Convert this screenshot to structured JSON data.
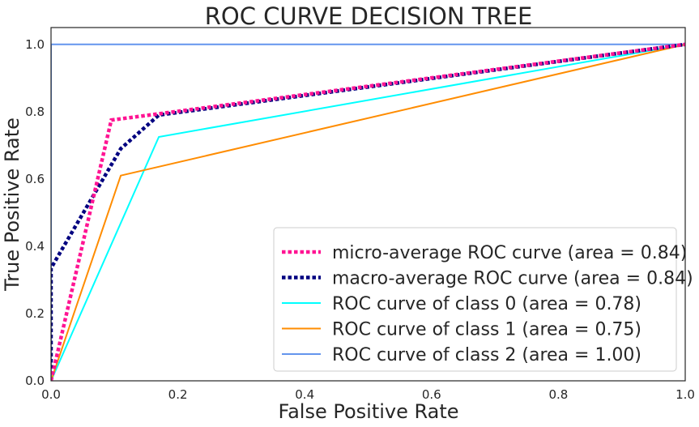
{
  "chart_data": {
    "type": "line",
    "title": "ROC CURVE DECISION TREE",
    "xlabel": "False Positive Rate",
    "ylabel": "True Positive Rate",
    "xlim": [
      0.0,
      1.0
    ],
    "ylim": [
      0.0,
      1.05
    ],
    "xticks": [
      "0.0",
      "0.2",
      "0.4",
      "0.6",
      "0.8",
      "1.0"
    ],
    "yticks": [
      "0.0",
      "0.2",
      "0.4",
      "0.6",
      "0.8",
      "1.0"
    ],
    "grid": false,
    "legend_position": "lower-right",
    "series": [
      {
        "name": "micro-average ROC curve (area = 0.84)",
        "color": "#ff1493",
        "style": "dotted",
        "x": [
          0.0,
          0.095,
          1.0
        ],
        "y": [
          0.0,
          0.775,
          1.0
        ]
      },
      {
        "name": "macro-average ROC curve (area = 0.84)",
        "color": "#000080",
        "style": "dotted",
        "x": [
          0.0,
          0.0,
          0.11,
          0.17,
          1.0
        ],
        "y": [
          0.0,
          0.335,
          0.69,
          0.79,
          1.0
        ]
      },
      {
        "name": "ROC curve of class 0 (area = 0.78)",
        "color": "#00ffff",
        "style": "solid",
        "x": [
          0.0,
          0.17,
          1.0
        ],
        "y": [
          0.0,
          0.725,
          1.0
        ]
      },
      {
        "name": "ROC curve of class 1 (area = 0.75)",
        "color": "#ff8c00",
        "style": "solid",
        "x": [
          0.0,
          0.11,
          1.0
        ],
        "y": [
          0.0,
          0.61,
          1.0
        ]
      },
      {
        "name": "ROC curve of class 2 (area = 1.00)",
        "color": "#6495ed",
        "style": "solid",
        "x": [
          0.0,
          0.0,
          1.0
        ],
        "y": [
          0.0,
          1.0,
          1.0
        ]
      }
    ]
  }
}
